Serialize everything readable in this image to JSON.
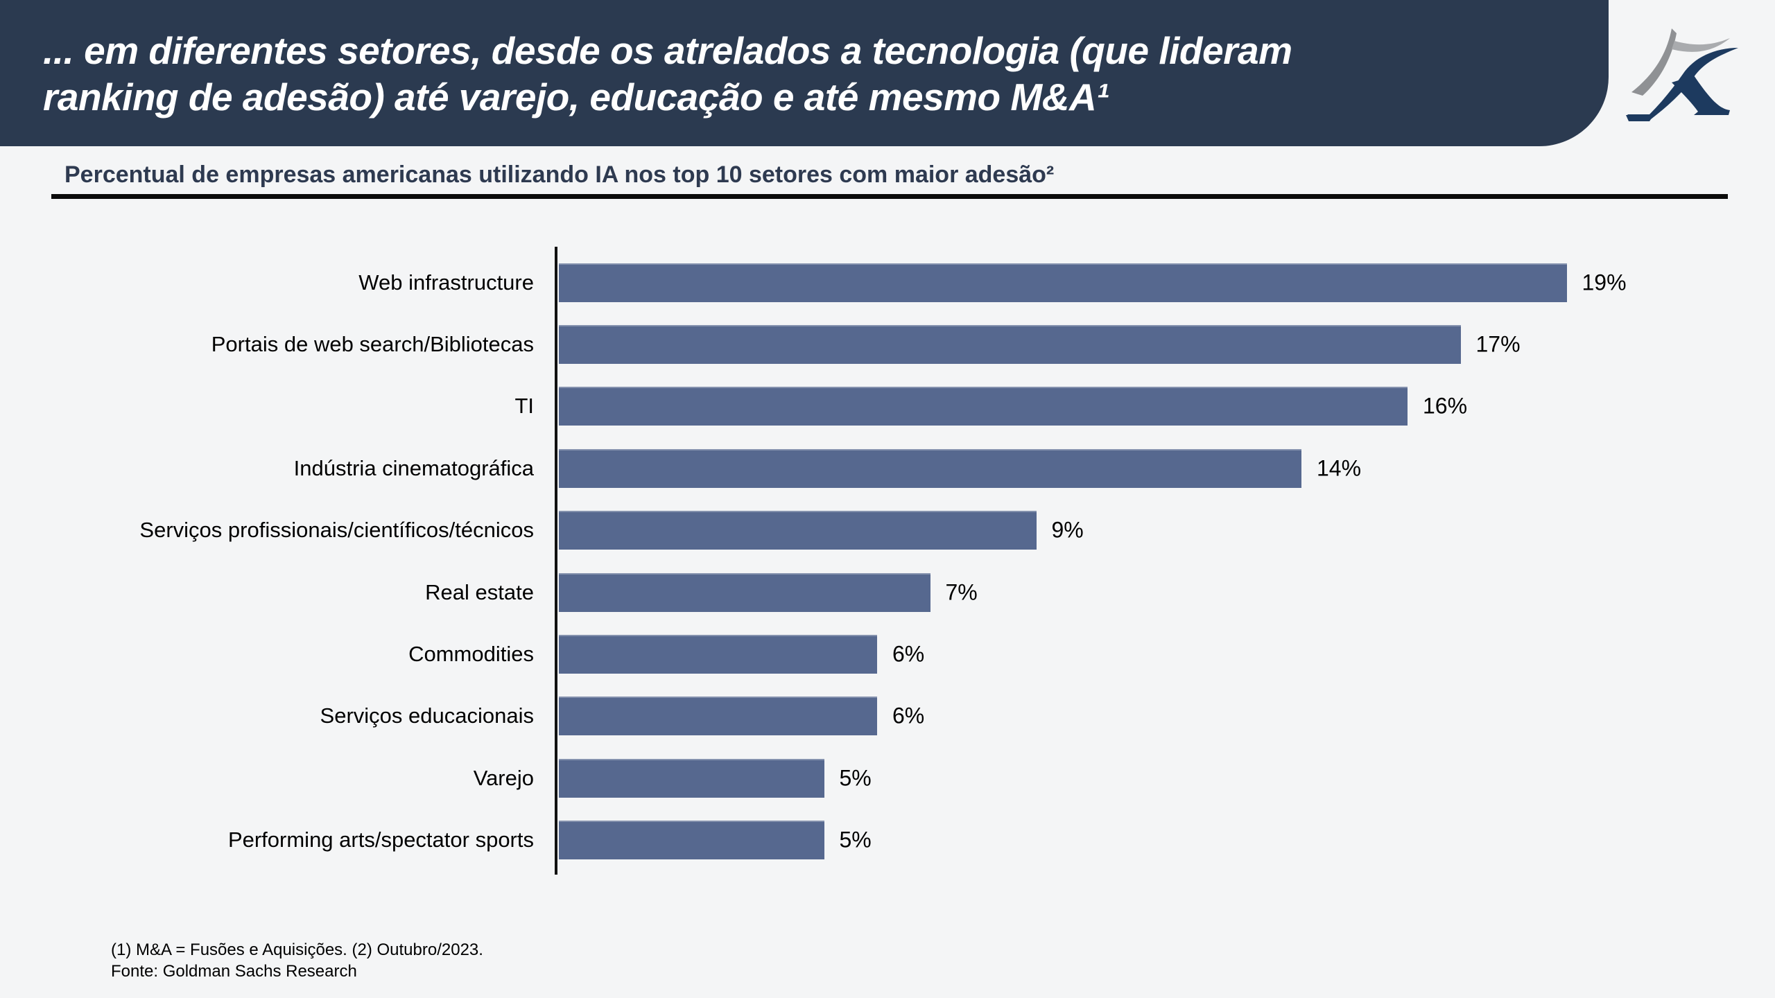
{
  "page": {
    "background": "#f4f5f6"
  },
  "header": {
    "background": "#2b3a50",
    "title_line1": "... em diferentes setores, desde os atrelados a tecnologia (que lideram",
    "title_line2": "ranking de adesão) até varejo, educação e até mesmo M&A¹",
    "logo": {
      "name": "stylized-K-with-gray-peak",
      "navy": "#1d3a5f",
      "gray": "#8f9194"
    }
  },
  "subtitle": {
    "text": "Percentual de empresas americanas utilizando IA nos top 10 setores com maior adesão²"
  },
  "chart_data": {
    "type": "bar",
    "orientation": "horizontal",
    "title": "Percentual de empresas americanas utilizando IA nos top 10 setores com maior adesão²",
    "categories": [
      "Web infrastructure",
      "Portais de web search/Bibliotecas",
      "TI",
      "Indústria cinematográfica",
      "Serviços profissionais/científicos/técnicos",
      "Real estate",
      "Commodities",
      "Serviços educacionais",
      "Varejo",
      "Performing arts/spectator sports"
    ],
    "values": [
      19,
      17,
      16,
      14,
      9,
      7,
      6,
      6,
      5,
      5
    ],
    "value_labels": [
      "19%",
      "17%",
      "16%",
      "14%",
      "9%",
      "7%",
      "6%",
      "6%",
      "5%",
      "5%"
    ],
    "xlabel": "",
    "ylabel": "",
    "xlim": [
      0,
      19
    ],
    "grid": false,
    "legend": false,
    "bar_color": "#56688f",
    "axis_color": "#111111"
  },
  "footer": {
    "note_line1": "(1) M&A = Fusões e Aquisições. (2) Outubro/2023.",
    "note_line2": "Fonte: Goldman Sachs Research"
  }
}
